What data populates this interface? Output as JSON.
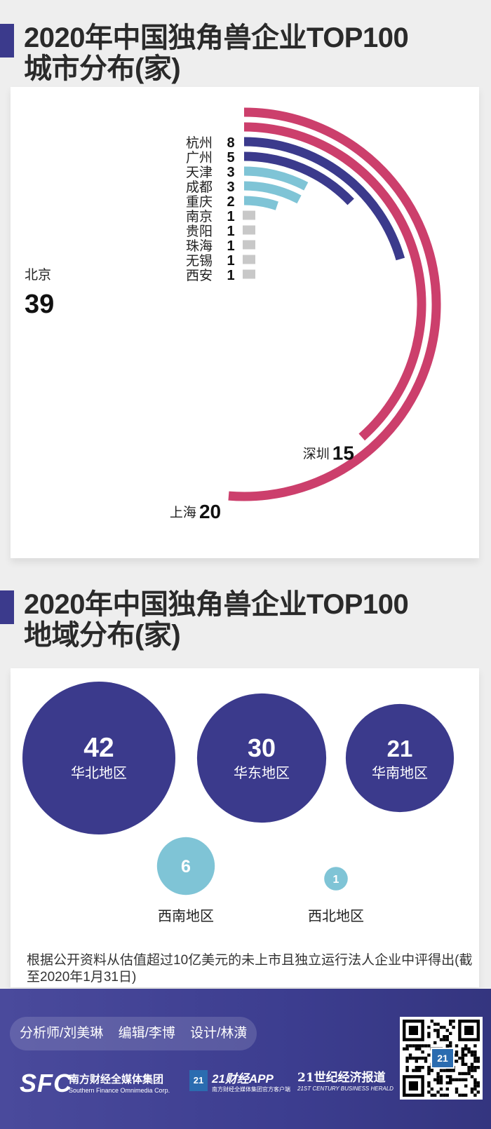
{
  "section1": {
    "title_line1": "2020年中国独角兽企业TOP100",
    "title_line2": "城市分布(家)"
  },
  "section2": {
    "title_line1": "2020年中国独角兽企业TOP100",
    "title_line2": "地域分布(家)"
  },
  "colors": {
    "crimson": "#cc3f6c",
    "navy": "#3b3a8c",
    "light_blue": "#7fc4d6",
    "gray": "#c8c8c8"
  },
  "chart_data": [
    {
      "type": "radial-bar",
      "categories": [
        "北京",
        "上海",
        "深圳",
        "杭州",
        "广州",
        "天津",
        "成都",
        "重庆",
        "南京",
        "贵阳",
        "珠海",
        "无锡",
        "西安"
      ],
      "values": [
        39,
        20,
        15,
        8,
        5,
        3,
        3,
        2,
        1,
        1,
        1,
        1,
        1
      ],
      "max": 39
    },
    {
      "type": "bubble",
      "categories": [
        "华北地区",
        "华东地区",
        "华南地区",
        "西南地区",
        "西北地区"
      ],
      "values": [
        42,
        30,
        21,
        6,
        1
      ]
    }
  ],
  "note": "根据公开资料从估值超过10亿美元的未上市且独立运行法人企业中评得出(截至2020年1月31日)",
  "footer": {
    "credits": [
      "分析师/刘美琳",
      "编辑/李博",
      "设计/林潢"
    ],
    "sfc_mark": "SFC",
    "sfc_name_cn": "南方财经全媒体集团",
    "sfc_name_en": "Southern Finance Omnimedia Corp.",
    "app_mark": "21",
    "app_name": "21财经APP",
    "app_sub": "南方财经全媒体集团官方客户端",
    "herald_name_cn": "21世纪经济报道",
    "herald_name_en": "21ST CENTURY BUSINESS HERALD",
    "qr_badge": "21"
  }
}
